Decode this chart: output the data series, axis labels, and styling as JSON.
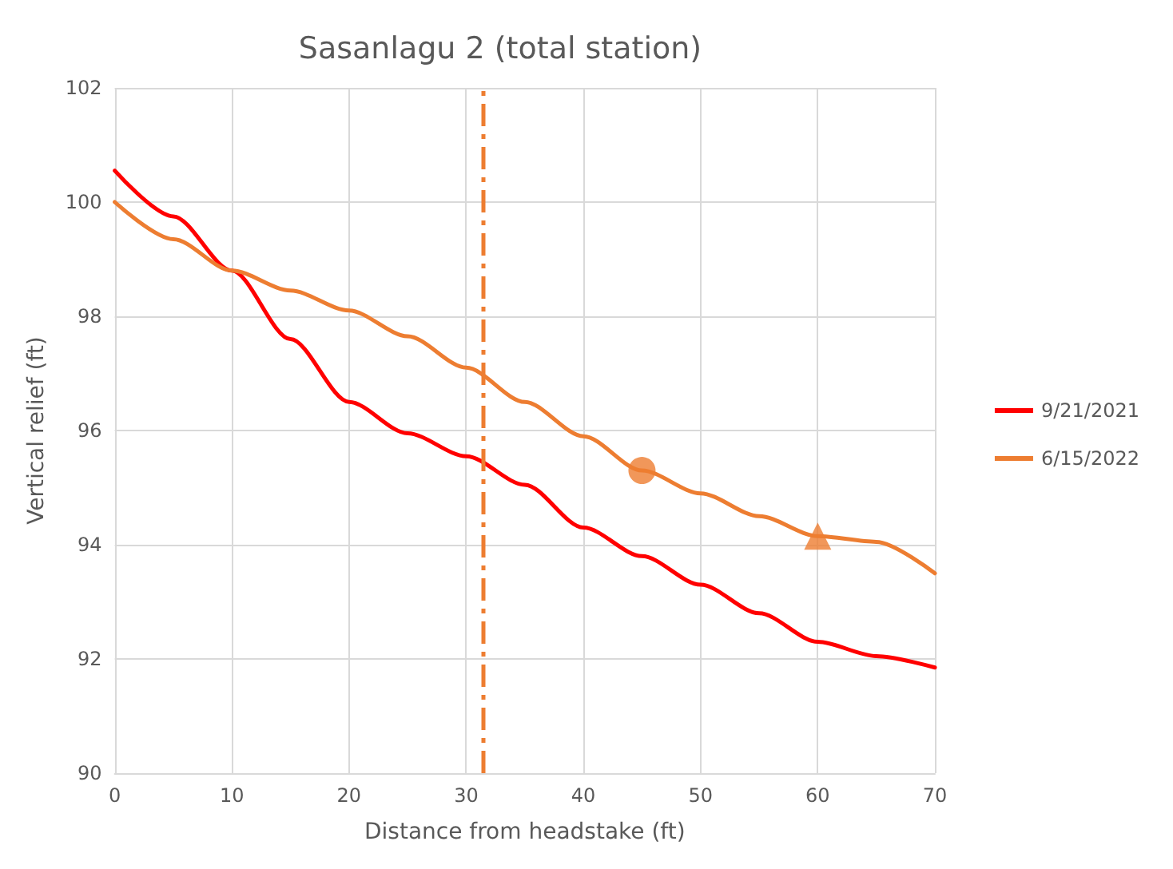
{
  "chart_data": {
    "type": "line",
    "title": "Sasanlagu 2 (total station)",
    "xlabel": "Distance from headstake (ft)",
    "ylabel": "Vertical relief (ft)",
    "x": [
      0,
      5,
      10,
      15,
      20,
      25,
      30,
      35,
      40,
      45,
      50,
      55,
      60,
      65,
      70
    ],
    "series": [
      {
        "name": "9/21/2021",
        "color": "#ff0000",
        "values": [
          100.55,
          99.75,
          98.8,
          97.6,
          96.5,
          95.95,
          95.55,
          95.05,
          94.3,
          93.8,
          93.3,
          92.8,
          92.3,
          92.05,
          91.85
        ]
      },
      {
        "name": "6/15/2022",
        "color": "#ed7d31",
        "values": [
          100,
          99.35,
          98.8,
          98.45,
          98.1,
          97.65,
          97.1,
          96.5,
          95.9,
          95.3,
          94.9,
          94.5,
          94.15,
          94.05,
          93.5
        ]
      },
      {
        "type": "scatter",
        "color": "#ed7d31",
        "marker": "circle",
        "x": [
          45
        ],
        "values": [
          95.3
        ]
      },
      {
        "type": "scatter",
        "color": "#ed7d31",
        "marker": "triangle",
        "x": [
          60
        ],
        "values": [
          94.15
        ]
      }
    ],
    "xlim": [
      0,
      70
    ],
    "xticks": [
      0,
      10,
      20,
      30,
      40,
      50,
      60,
      70
    ],
    "ylim": [
      90,
      102
    ],
    "yticks": [
      90,
      92,
      94,
      96,
      98,
      100,
      102
    ],
    "ref_lines": [
      {
        "axis": "x",
        "value": 31.5,
        "color": "#ed7d31",
        "line_style": "dashed"
      }
    ],
    "grid": true,
    "legend": "right",
    "marker": "none",
    "line_style": "solid"
  }
}
